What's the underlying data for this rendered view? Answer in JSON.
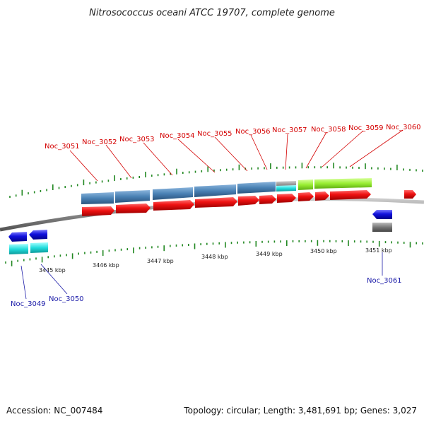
{
  "title": "Nitrosococcus oceani ATCC 19707, complete genome",
  "footer": {
    "accession": "Accession: NC_007484",
    "summary": "Topology: circular; Length: 3,481,691 bp; Genes: 3,027"
  },
  "scale_labels": [
    "3445 kbp",
    "3446 kbp",
    "3447 kbp",
    "3448 kbp",
    "3449 kbp",
    "3450 kbp",
    "3451 kbp"
  ],
  "genes_top": [
    "Noc_3051",
    "Noc_3052",
    "Noc_3053",
    "Noc_3054",
    "Noc_3055",
    "Noc_3056",
    "Noc_3057",
    "Noc_3058",
    "Noc_3059",
    "Noc_3060"
  ],
  "genes_bottom": [
    "Noc_3049",
    "Noc_3050",
    "Noc_3061"
  ],
  "colors": {
    "forward_cds": "#ee1111",
    "reverse_cds": "#1111dd",
    "forward_gene_bar": "#4a82b5",
    "steel_blue": "#4a82b5",
    "cyan": "#22dddd",
    "lime": "#99ee33",
    "grey": "#777777",
    "backbone": "#888888",
    "tick": "#228822",
    "top_label": "#d40000",
    "bottom_label": "#1a1aa8"
  }
}
